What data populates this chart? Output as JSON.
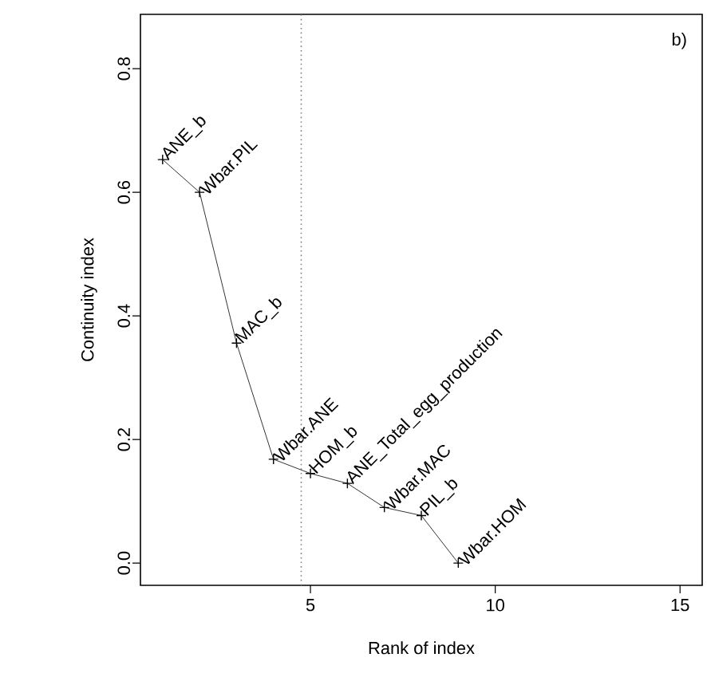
{
  "chart_data": {
    "type": "line",
    "xlabel": "Rank of index",
    "ylabel": "Continuity index",
    "x": [
      1,
      2,
      3,
      4,
      5,
      6,
      7,
      8,
      9
    ],
    "series": [
      {
        "color": "#000000",
        "values": [
          0.653,
          0.6,
          0.356,
          0.168,
          0.145,
          0.129,
          0.09,
          0.077,
          0.0
        ]
      }
    ],
    "marker": "cross",
    "line_style": "solid",
    "xlim": [
      0.4,
      15.6
    ],
    "ylim": [
      -0.036,
      0.888
    ],
    "xticks": [
      5,
      10,
      15
    ],
    "yticks": [
      {
        "value": 0.0,
        "label": "0.0"
      },
      {
        "value": 0.2,
        "label": "0.2"
      },
      {
        "value": 0.4,
        "label": "0.4"
      },
      {
        "value": 0.6,
        "label": "0.6"
      },
      {
        "value": 0.8,
        "label": "0.8"
      }
    ],
    "ref_lines": [
      {
        "axis": "x",
        "value": 4.75,
        "color": "#808080",
        "line_style": "dotted"
      }
    ],
    "annotations": [
      "b)",
      {
        "text": "ANE_b",
        "x": 1,
        "y": 0.653
      },
      {
        "text": "Wbar.PIL",
        "x": 2,
        "y": 0.6
      },
      {
        "text": "MAC_b",
        "x": 3,
        "y": 0.356
      },
      {
        "text": "Wbar.ANE",
        "x": 4,
        "y": 0.168
      },
      {
        "text": "HOM_b",
        "x": 5,
        "y": 0.145
      },
      {
        "text": "ANE_Total_egg_production",
        "x": 6,
        "y": 0.129
      },
      {
        "text": "Wbar.MAC",
        "x": 7,
        "y": 0.09
      },
      {
        "text": "PIL_b",
        "x": 8,
        "y": 0.077
      },
      {
        "text": "Wbar.HOM",
        "x": 9,
        "y": 0.0
      }
    ]
  }
}
